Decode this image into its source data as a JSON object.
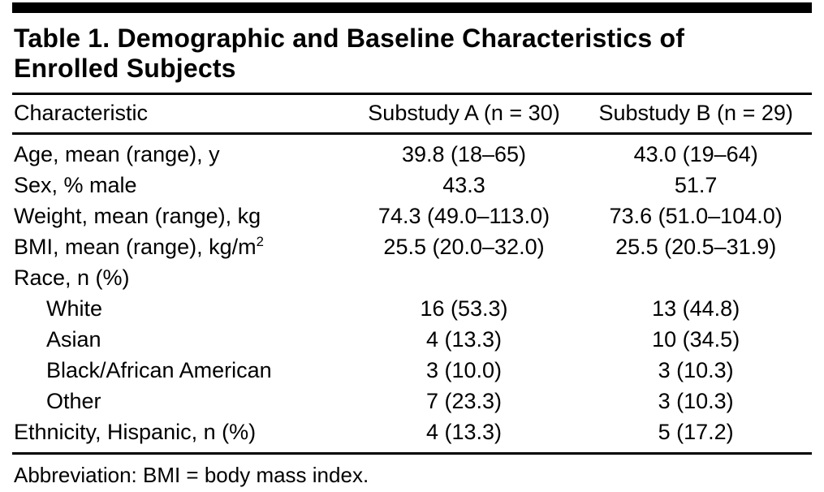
{
  "table": {
    "title": "Table 1. Demographic and Baseline Characteristics of Enrolled Subjects",
    "columns": [
      "Characteristic",
      "Substudy A (n = 30)",
      "Substudy B (n = 29)"
    ],
    "rows": [
      {
        "label": "Age, mean (range), y",
        "a": "39.8 (18–65)",
        "b": "43.0 (19–64)"
      },
      {
        "label": "Sex, % male",
        "a": "43.3",
        "b": "51.7"
      },
      {
        "label": "Weight, mean (range), kg",
        "a": "74.3 (49.0–113.0)",
        "b": "73.6 (51.0–104.0)"
      },
      {
        "label": "BMI, mean (range), kg/m",
        "label_sup": "2",
        "a": "25.5 (20.0–32.0)",
        "b": "25.5 (20.5–31.9)"
      },
      {
        "label": "Race, n (%)",
        "a": "",
        "b": ""
      },
      {
        "label": "White",
        "a": "16 (53.3)",
        "b": "13 (44.8)"
      },
      {
        "label": "Asian",
        "a": "4 (13.3)",
        "b": "10 (34.5)"
      },
      {
        "label": "Black/African American",
        "a": "3 (10.0)",
        "b": "3 (10.3)"
      },
      {
        "label": "Other",
        "a": "7 (23.3)",
        "b": "3 (10.3)"
      },
      {
        "label": "Ethnicity, Hispanic, n (%)",
        "a": "4 (13.3)",
        "b": "5 (17.2)"
      }
    ],
    "footnote": "Abbreviation: BMI = body mass index."
  }
}
